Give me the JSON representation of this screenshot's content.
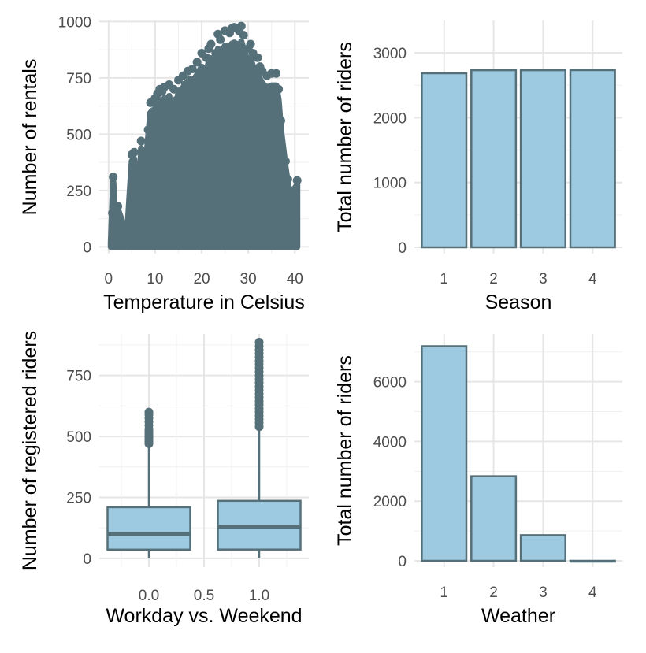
{
  "colors": {
    "bar_fill": "#9ecae1",
    "stroke": "#56707a",
    "grid_major": "#e6e6e6",
    "grid_minor": "#f0f0f0"
  },
  "chart_data": [
    {
      "type": "scatter",
      "title": "",
      "xlabel": "Temperature in Celsius",
      "ylabel": "Number of rentals",
      "xlim": [
        0,
        42
      ],
      "ylim": [
        0,
        1000
      ],
      "xticks": [
        0,
        10,
        20,
        30,
        40
      ],
      "yticks": [
        0,
        250,
        500,
        750,
        1000
      ],
      "grid": true,
      "series": [
        {
          "points": [
            [
              0.8,
              20
            ],
            [
              0.8,
              150
            ],
            [
              1.0,
              310
            ],
            [
              1.6,
              40
            ],
            [
              2.0,
              180
            ],
            [
              3.2,
              100
            ],
            [
              4.0,
              60
            ],
            [
              5.0,
              410
            ],
            [
              5.5,
              420
            ],
            [
              6.0,
              250
            ],
            [
              6.5,
              140
            ],
            [
              7.0,
              470
            ],
            [
              7.5,
              330
            ],
            [
              8.0,
              390
            ],
            [
              8.5,
              520
            ],
            [
              9.0,
              640
            ],
            [
              9.5,
              600
            ],
            [
              10.0,
              660
            ],
            [
              10.5,
              680
            ],
            [
              11.0,
              700
            ],
            [
              11.5,
              690
            ],
            [
              12.0,
              710
            ],
            [
              12.5,
              630
            ],
            [
              13.0,
              720
            ],
            [
              13.5,
              620
            ],
            [
              14.0,
              700
            ],
            [
              14.5,
              650
            ],
            [
              15.0,
              740
            ],
            [
              16.0,
              760
            ],
            [
              16.5,
              720
            ],
            [
              17.0,
              780
            ],
            [
              17.5,
              740
            ],
            [
              18.0,
              790
            ],
            [
              19.0,
              820
            ],
            [
              20.0,
              860
            ],
            [
              21.0,
              840
            ],
            [
              21.5,
              880
            ],
            [
              22.0,
              900
            ],
            [
              23.0,
              860
            ],
            [
              23.5,
              945
            ],
            [
              24.0,
              920
            ],
            [
              25.0,
              960
            ],
            [
              26.0,
              950
            ],
            [
              26.5,
              970
            ],
            [
              27.0,
              975
            ],
            [
              28.0,
              960
            ],
            [
              28.5,
              980
            ],
            [
              29.0,
              940
            ],
            [
              30.0,
              880
            ],
            [
              30.5,
              900
            ],
            [
              31.0,
              860
            ],
            [
              32.0,
              840
            ],
            [
              32.5,
              800
            ],
            [
              33.0,
              780
            ],
            [
              34.0,
              760
            ],
            [
              35.0,
              770
            ],
            [
              36.0,
              770
            ],
            [
              36.5,
              700
            ],
            [
              37.0,
              560
            ],
            [
              38.0,
              380
            ],
            [
              38.5,
              300
            ],
            [
              39.0,
              250
            ],
            [
              40.5,
              295
            ]
          ]
        }
      ]
    },
    {
      "type": "bar",
      "title": "",
      "xlabel": "Season",
      "ylabel": "Total number of riders",
      "categories": [
        "1",
        "2",
        "3",
        "4"
      ],
      "values": [
        2686,
        2733,
        2733,
        2734
      ],
      "ylim": [
        0,
        3500
      ],
      "yticks": [
        0,
        1000,
        2000,
        3000
      ],
      "grid": true
    },
    {
      "type": "box",
      "title": "",
      "xlabel": "Workday vs. Weekend",
      "ylabel": "Number of registered riders",
      "xticks": [
        "0.0",
        "0.5",
        "1.0"
      ],
      "yticks": [
        0,
        250,
        500,
        750
      ],
      "ylim": [
        0,
        920
      ],
      "grid": true,
      "boxes": [
        {
          "x": 0,
          "q1": 36,
          "median": 100,
          "q3": 210,
          "whisker_low": 0,
          "whisker_high": 465,
          "outliers": [
            470,
            478,
            486,
            494,
            502,
            510,
            520,
            530,
            545,
            560,
            575,
            590,
            600
          ]
        },
        {
          "x": 1,
          "q1": 36,
          "median": 130,
          "q3": 236,
          "whisker_low": 0,
          "whisker_high": 535,
          "outliers": [
            540,
            555,
            570,
            585,
            600,
            615,
            630,
            645,
            660,
            675,
            690,
            705,
            720,
            735,
            750,
            765,
            780,
            795,
            810,
            825,
            840,
            855,
            870,
            886
          ]
        }
      ]
    },
    {
      "type": "bar",
      "title": "",
      "xlabel": "Weather",
      "ylabel": "Total number of riders",
      "categories": [
        "1",
        "2",
        "3",
        "4"
      ],
      "values": [
        7192,
        2834,
        859,
        1
      ],
      "ylim": [
        0,
        7600
      ],
      "yticks": [
        0,
        2000,
        4000,
        6000
      ],
      "grid": true
    }
  ]
}
